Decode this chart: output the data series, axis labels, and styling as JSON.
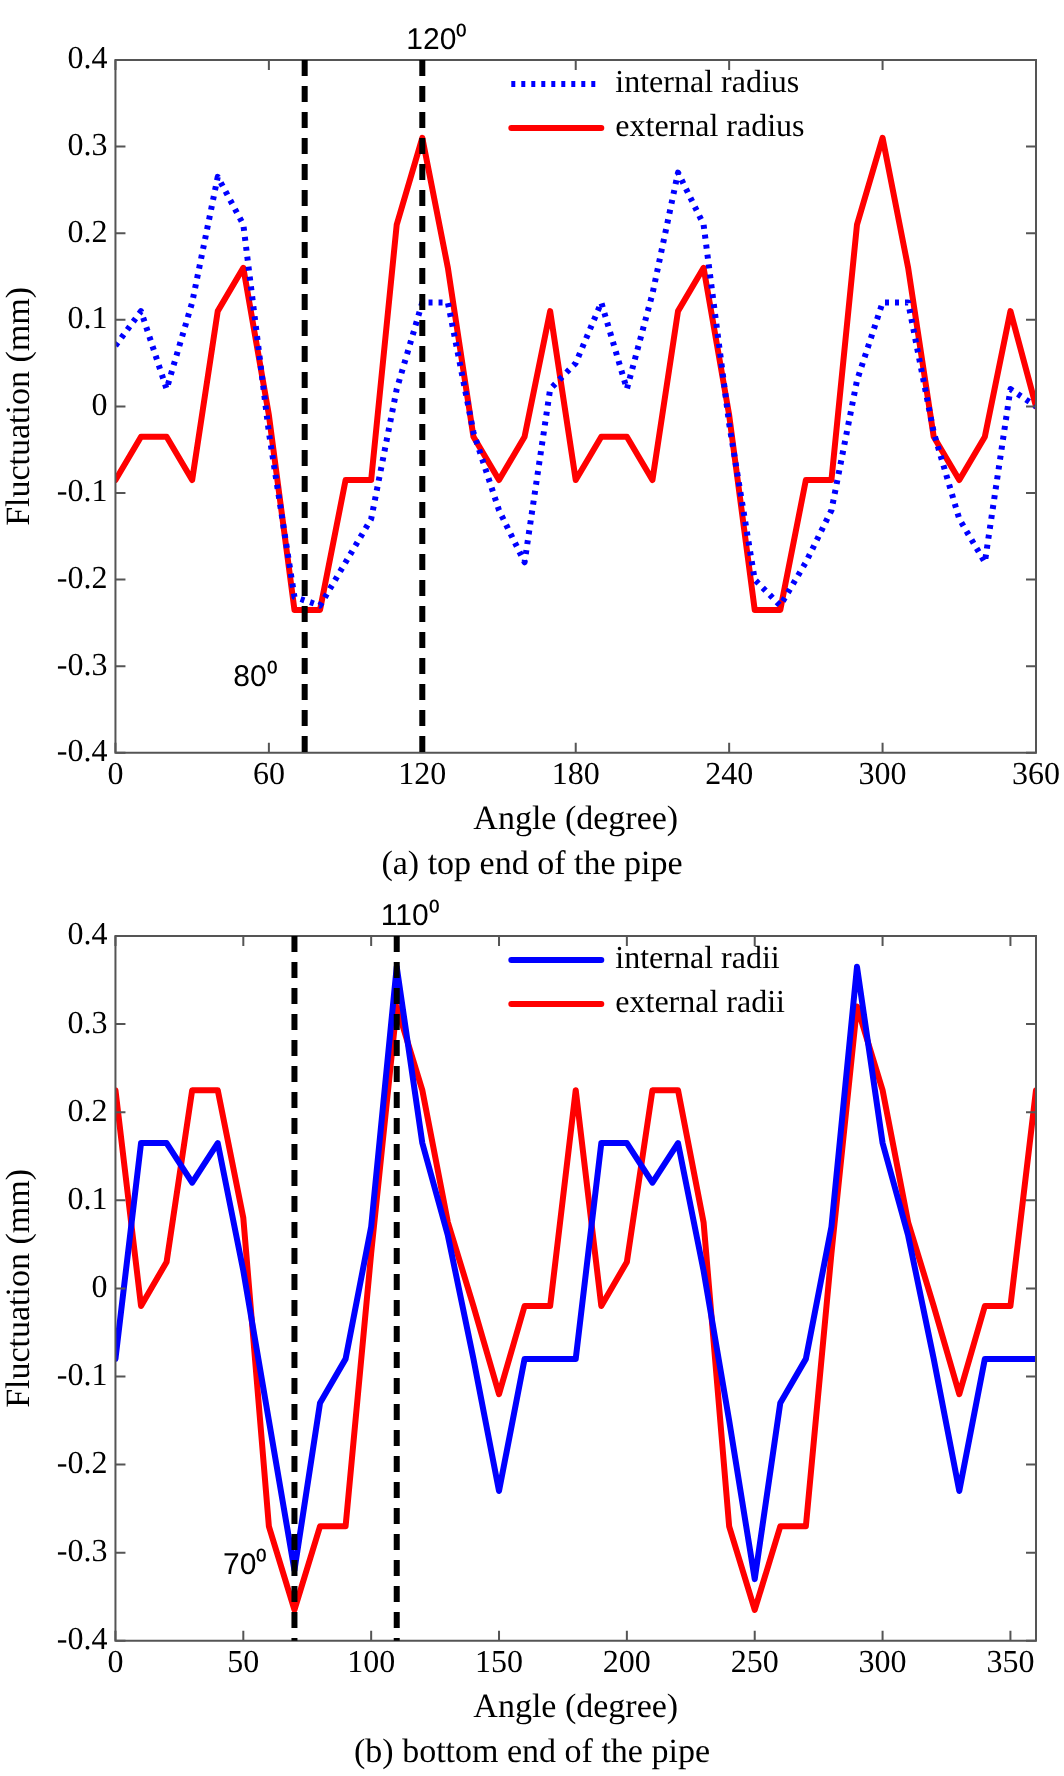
{
  "chart_data": [
    {
      "type": "line",
      "title": "(a) top end of the pipe",
      "xlabel": "Angle (degree)",
      "ylabel": "Fluctuation (mm)",
      "x": [
        0,
        10,
        20,
        30,
        40,
        50,
        60,
        70,
        80,
        90,
        100,
        110,
        120,
        130,
        140,
        150,
        160,
        170,
        180,
        190,
        200,
        210,
        220,
        230,
        240,
        250,
        260,
        270,
        280,
        290,
        300,
        310,
        320,
        330,
        340,
        350,
        360
      ],
      "series": [
        {
          "name": "internal radius",
          "color": "#0000ff",
          "line_style": "dotted",
          "values": [
            0.07,
            0.11,
            0.02,
            0.12,
            0.265,
            0.21,
            -0.03,
            -0.22,
            -0.23,
            -0.18,
            -0.13,
            0.02,
            0.12,
            0.12,
            -0.03,
            -0.12,
            -0.18,
            0.02,
            0.05,
            0.12,
            0.02,
            0.13,
            0.27,
            0.21,
            -0.02,
            -0.2,
            -0.23,
            -0.18,
            -0.12,
            0.03,
            0.12,
            0.12,
            -0.03,
            -0.13,
            -0.18,
            0.02,
            0.0
          ]
        },
        {
          "name": "external radius",
          "color": "#ff0000",
          "line_style": "solid",
          "values": [
            -0.085,
            -0.035,
            -0.035,
            -0.085,
            0.11,
            0.16,
            -0.01,
            -0.235,
            -0.235,
            -0.085,
            -0.085,
            0.21,
            0.31,
            0.16,
            -0.035,
            -0.085,
            -0.035,
            0.11,
            -0.085,
            -0.035,
            -0.035,
            -0.085,
            0.11,
            0.16,
            -0.01,
            -0.235,
            -0.235,
            -0.085,
            -0.085,
            0.21,
            0.31,
            0.16,
            -0.035,
            -0.085,
            -0.035,
            0.11,
            0.0
          ]
        }
      ],
      "xlim": [
        0,
        360
      ],
      "xticks": [
        0,
        60,
        120,
        180,
        240,
        300,
        360
      ],
      "ylim": [
        -0.4,
        0.4
      ],
      "yticks": [
        -0.4,
        -0.3,
        -0.2,
        -0.1,
        0,
        0.1,
        0.2,
        0.3,
        0.4
      ],
      "ref_lines": [
        {
          "axis": "x",
          "value": 74,
          "label": "80⁰",
          "color": "#000000",
          "line_style": "dashed"
        },
        {
          "axis": "x",
          "value": 120,
          "label": "120⁰",
          "color": "#000000",
          "line_style": "dashed"
        }
      ],
      "grid": false,
      "legend": "top right",
      "marker": "none"
    },
    {
      "type": "line",
      "title": "(b) bottom end of the pipe",
      "xlabel": "Angle (degree)",
      "ylabel": "Fluctuation (mm)",
      "x": [
        0,
        10,
        20,
        30,
        40,
        50,
        60,
        70,
        80,
        90,
        100,
        110,
        120,
        130,
        140,
        150,
        160,
        170,
        180,
        190,
        200,
        210,
        220,
        230,
        240,
        250,
        260,
        270,
        280,
        290,
        300,
        310,
        320,
        330,
        340,
        350,
        360
      ],
      "series": [
        {
          "name": "internal radii",
          "color": "#0000ff",
          "line_style": "solid",
          "values": [
            -0.08,
            0.165,
            0.165,
            0.12,
            0.165,
            0.02,
            -0.15,
            -0.32,
            -0.13,
            -0.08,
            0.07,
            0.365,
            0.165,
            0.06,
            -0.08,
            -0.23,
            -0.08,
            -0.08,
            -0.08,
            0.165,
            0.165,
            0.12,
            0.165,
            0.02,
            -0.15,
            -0.33,
            -0.13,
            -0.08,
            0.07,
            0.365,
            0.165,
            0.06,
            -0.08,
            -0.23,
            -0.08,
            -0.08,
            -0.08
          ]
        },
        {
          "name": "external radii",
          "color": "#ff0000",
          "line_style": "solid",
          "values": [
            0.225,
            -0.02,
            0.03,
            0.225,
            0.225,
            0.08,
            -0.27,
            -0.365,
            -0.27,
            -0.27,
            0.04,
            0.32,
            0.225,
            0.075,
            -0.02,
            -0.12,
            -0.02,
            -0.02,
            0.225,
            -0.02,
            0.03,
            0.225,
            0.225,
            0.075,
            -0.27,
            -0.365,
            -0.27,
            -0.27,
            0.04,
            0.32,
            0.225,
            0.075,
            -0.02,
            -0.12,
            -0.02,
            -0.02,
            0.225
          ]
        }
      ],
      "xlim": [
        0,
        360
      ],
      "xticks": [
        0,
        50,
        100,
        150,
        200,
        250,
        300,
        350
      ],
      "ylim": [
        -0.4,
        0.4
      ],
      "yticks": [
        -0.4,
        -0.3,
        -0.2,
        -0.1,
        0,
        0.1,
        0.2,
        0.3,
        0.4
      ],
      "ref_lines": [
        {
          "axis": "x",
          "value": 70,
          "label": "70⁰",
          "color": "#000000",
          "line_style": "dashed"
        },
        {
          "axis": "x",
          "value": 110,
          "label": "110⁰",
          "color": "#000000",
          "line_style": "dashed"
        }
      ],
      "grid": false,
      "legend": "top right",
      "marker": "none"
    }
  ]
}
